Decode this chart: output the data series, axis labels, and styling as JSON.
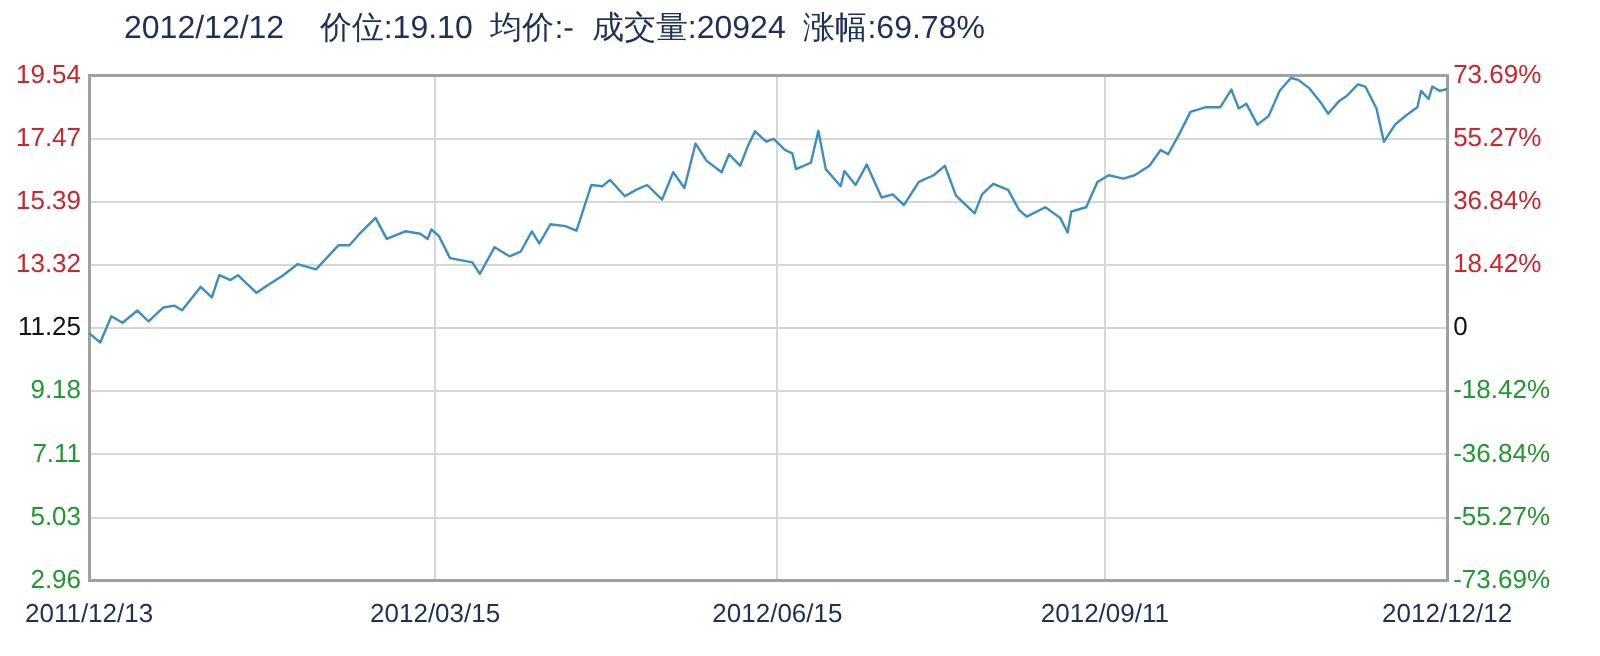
{
  "chart_data": {
    "type": "line",
    "title": "2012/12/12    价位:19.10  均价:-  成交量:20924  涨幅:69.78%",
    "x": [
      "2011-12-13",
      "2011-12-16",
      "2011-12-19",
      "2011-12-22",
      "2011-12-26",
      "2011-12-29",
      "2012-01-02",
      "2012-01-05",
      "2012-01-07",
      "2012-01-10",
      "2012-01-12",
      "2012-01-15",
      "2012-01-17",
      "2012-01-20",
      "2012-01-22",
      "2012-01-27",
      "2012-01-30",
      "2012-02-03",
      "2012-02-07",
      "2012-02-12",
      "2012-02-18",
      "2012-02-21",
      "2012-02-24",
      "2012-02-28",
      "2012-03-02",
      "2012-03-07",
      "2012-03-11",
      "2012-03-13",
      "2012-03-14",
      "2012-03-16",
      "2012-03-19",
      "2012-03-25",
      "2012-03-27",
      "2012-03-31",
      "2012-04-04",
      "2012-04-07",
      "2012-04-10",
      "2012-04-12",
      "2012-04-15",
      "2012-04-19",
      "2012-04-22",
      "2012-04-26",
      "2012-04-29",
      "2012-05-01",
      "2012-05-05",
      "2012-05-08",
      "2012-05-11",
      "2012-05-15",
      "2012-05-18",
      "2012-05-21",
      "2012-05-24",
      "2012-05-27",
      "2012-05-31",
      "2012-06-02",
      "2012-06-05",
      "2012-06-07",
      "2012-06-09",
      "2012-06-12",
      "2012-06-14",
      "2012-06-17",
      "2012-06-19",
      "2012-06-20",
      "2012-06-24",
      "2012-06-26",
      "2012-06-28",
      "2012-07-02",
      "2012-07-03",
      "2012-07-06",
      "2012-07-09",
      "2012-07-13",
      "2012-07-16",
      "2012-07-19",
      "2012-07-23",
      "2012-07-27",
      "2012-07-30",
      "2012-08-02",
      "2012-08-07",
      "2012-08-09",
      "2012-08-12",
      "2012-08-16",
      "2012-08-19",
      "2012-08-21",
      "2012-08-26",
      "2012-08-30",
      "2012-09-01",
      "2012-09-02",
      "2012-09-06",
      "2012-09-09",
      "2012-09-12",
      "2012-09-16",
      "2012-09-19",
      "2012-09-23",
      "2012-09-26",
      "2012-09-28",
      "2012-10-01",
      "2012-10-04",
      "2012-10-08",
      "2012-10-12",
      "2012-10-15",
      "2012-10-17",
      "2012-10-19",
      "2012-10-22",
      "2012-10-25",
      "2012-10-28",
      "2012-10-31",
      "2012-11-02",
      "2012-11-05",
      "2012-11-08",
      "2012-11-10",
      "2012-11-13",
      "2012-11-15",
      "2012-11-18",
      "2012-11-20",
      "2012-11-23",
      "2012-11-25",
      "2012-11-28",
      "2012-12-01",
      "2012-12-04",
      "2012-12-05",
      "2012-12-07",
      "2012-12-08",
      "2012-12-10",
      "2012-12-12"
    ],
    "series": [
      {
        "color": "#3a8ec2",
        "values": [
          11.09,
          10.78,
          11.64,
          11.43,
          11.83,
          11.47,
          11.93,
          11.99,
          11.84,
          12.3,
          12.61,
          12.26,
          12.99,
          12.83,
          12.99,
          12.41,
          12.66,
          12.97,
          13.35,
          13.18,
          13.97,
          13.97,
          14.39,
          14.87,
          14.18,
          14.43,
          14.35,
          14.18,
          14.49,
          14.28,
          13.55,
          13.41,
          13.03,
          13.91,
          13.61,
          13.76,
          14.43,
          14.03,
          14.66,
          14.6,
          14.45,
          15.95,
          15.91,
          16.12,
          15.58,
          15.79,
          15.95,
          15.47,
          16.37,
          15.85,
          17.31,
          16.74,
          16.37,
          16.96,
          16.58,
          17.21,
          17.71,
          17.37,
          17.46,
          17.1,
          16.99,
          16.47,
          16.68,
          17.73,
          16.47,
          15.91,
          16.41,
          15.95,
          16.62,
          15.54,
          15.64,
          15.29,
          16.05,
          16.27,
          16.58,
          15.6,
          15.02,
          15.64,
          15.99,
          15.79,
          15.12,
          14.91,
          15.22,
          14.87,
          14.39,
          15.08,
          15.22,
          16.05,
          16.27,
          16.16,
          16.27,
          16.58,
          17.1,
          16.96,
          17.62,
          18.35,
          18.5,
          18.5,
          19.08,
          18.46,
          18.62,
          17.93,
          18.21,
          19.04,
          19.46,
          19.4,
          19.12,
          18.66,
          18.29,
          18.71,
          18.87,
          19.25,
          19.18,
          18.46,
          17.37,
          17.93,
          18.24,
          18.5,
          19.04,
          18.77,
          19.18,
          19.04,
          19.1
        ]
      }
    ],
    "xlim": [
      "2011-12-13",
      "2012-12-12"
    ],
    "xticks": [
      {
        "value": "2011-12-13",
        "label": "2011/12/13"
      },
      {
        "value": "2012-03-15",
        "label": "2012/03/15"
      },
      {
        "value": "2012-06-15",
        "label": "2012/06/15"
      },
      {
        "value": "2012-09-11",
        "label": "2012/09/11"
      },
      {
        "value": "2012-12-12",
        "label": "2012/12/12"
      }
    ],
    "ylim": [
      2.96,
      19.54
    ],
    "yticks": [
      2.96,
      5.03,
      7.11,
      9.18,
      11.25,
      13.32,
      15.39,
      17.47,
      19.54
    ],
    "y2lim": [
      -73.69,
      73.69
    ],
    "y2ticks": [
      {
        "value": -73.69,
        "label": "-73.69%"
      },
      {
        "value": -55.27,
        "label": "-55.27%"
      },
      {
        "value": -36.84,
        "label": "-36.84%"
      },
      {
        "value": -18.42,
        "label": "-18.42%"
      },
      0,
      {
        "value": 18.42,
        "label": "18.42%"
      },
      {
        "value": 36.84,
        "label": "36.84%"
      },
      {
        "value": 55.27,
        "label": "55.27%"
      },
      {
        "value": 73.69,
        "label": "73.69%"
      }
    ],
    "grid": true,
    "marker": "none",
    "line_style": "solid"
  }
}
